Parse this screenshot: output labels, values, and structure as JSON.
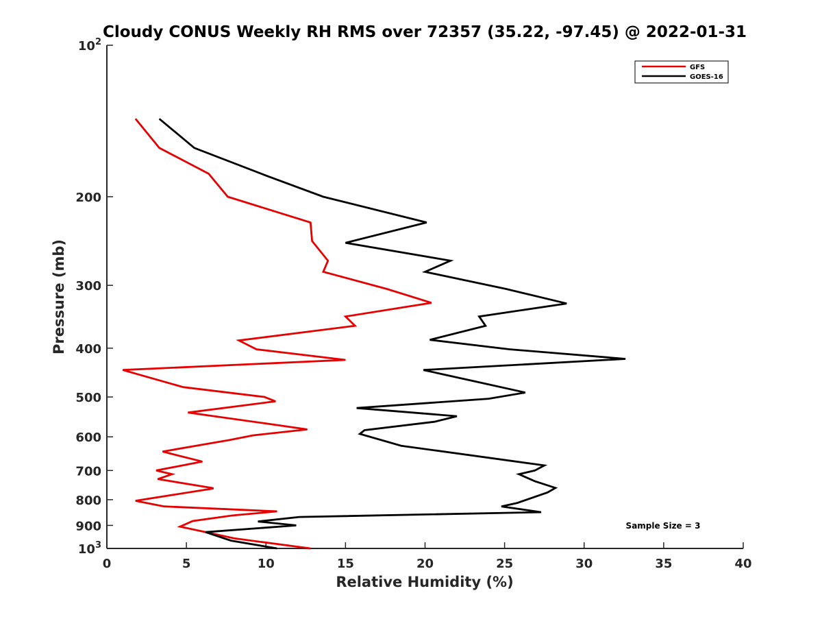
{
  "chart_data": {
    "type": "line",
    "title": "Cloudy CONUS Weekly RH RMS over 72357 (35.22, -97.45) @ 2022-01-31",
    "xlabel": "Relative Humidity (%)",
    "ylabel": "Pressure (mb)",
    "xlim": [
      0,
      40
    ],
    "ylim": [
      100,
      1000
    ],
    "y_scale": "log",
    "y_reversed": true,
    "grid": false,
    "legend_position": "top-right",
    "x_ticks": [
      "0",
      "5",
      "10",
      "15",
      "20",
      "25",
      "30",
      "35",
      "40"
    ],
    "y_ticks": [
      {
        "value": 100,
        "base": "10",
        "exp": "2"
      },
      {
        "value": 200,
        "label": "200"
      },
      {
        "value": 300,
        "label": "300"
      },
      {
        "value": 400,
        "label": "400"
      },
      {
        "value": 500,
        "label": "500"
      },
      {
        "value": 600,
        "label": "600"
      },
      {
        "value": 700,
        "label": "700"
      },
      {
        "value": 800,
        "label": "800"
      },
      {
        "value": 900,
        "label": "900"
      },
      {
        "value": 1000,
        "base": "10",
        "exp": "3"
      }
    ],
    "series": [
      {
        "name": "GFS",
        "color": "#e60000",
        "points": [
          [
            1.8,
            140
          ],
          [
            3.3,
            160
          ],
          [
            6.4,
            180
          ],
          [
            7.6,
            200
          ],
          [
            12.8,
            225
          ],
          [
            12.9,
            245
          ],
          [
            13.9,
            268
          ],
          [
            13.6,
            282
          ],
          [
            17.6,
            305
          ],
          [
            20.4,
            325
          ],
          [
            15.0,
            346
          ],
          [
            15.6,
            361
          ],
          [
            8.3,
            386
          ],
          [
            9.4,
            402
          ],
          [
            15.0,
            422
          ],
          [
            1.0,
            442
          ],
          [
            4.8,
            478
          ],
          [
            9.9,
            500
          ],
          [
            10.6,
            510
          ],
          [
            5.1,
            537
          ],
          [
            9.9,
            564
          ],
          [
            12.6,
            580
          ],
          [
            9.2,
            596
          ],
          [
            7.7,
            609
          ],
          [
            3.5,
            642
          ],
          [
            6.0,
            672
          ],
          [
            3.1,
            700
          ],
          [
            4.1,
            712
          ],
          [
            3.2,
            728
          ],
          [
            6.6,
            758
          ],
          [
            6.7,
            760
          ],
          [
            1.8,
            804
          ],
          [
            3.6,
            825
          ],
          [
            10.7,
            844
          ],
          [
            7.9,
            860
          ],
          [
            5.4,
            882
          ],
          [
            4.6,
            905
          ],
          [
            6.0,
            925
          ],
          [
            8.0,
            955
          ],
          [
            12.8,
            1000
          ]
        ]
      },
      {
        "name": "GOES-16",
        "color": "#000000",
        "points": [
          [
            3.3,
            140
          ],
          [
            5.5,
            160
          ],
          [
            10.1,
            182
          ],
          [
            13.6,
            200
          ],
          [
            20.1,
            225
          ],
          [
            15.0,
            247
          ],
          [
            21.6,
            268
          ],
          [
            20.0,
            282
          ],
          [
            25.1,
            305
          ],
          [
            28.9,
            326
          ],
          [
            23.4,
            346
          ],
          [
            23.8,
            361
          ],
          [
            20.3,
            385
          ],
          [
            25.3,
            402
          ],
          [
            32.6,
            420
          ],
          [
            19.9,
            442
          ],
          [
            24.0,
            472
          ],
          [
            26.3,
            490
          ],
          [
            24.0,
            504
          ],
          [
            15.7,
            526
          ],
          [
            22.0,
            546
          ],
          [
            20.6,
            560
          ],
          [
            16.2,
            582
          ],
          [
            15.9,
            592
          ],
          [
            18.5,
            625
          ],
          [
            27.5,
            684
          ],
          [
            26.9,
            700
          ],
          [
            25.9,
            712
          ],
          [
            26.9,
            735
          ],
          [
            28.2,
            758
          ],
          [
            27.7,
            774
          ],
          [
            25.8,
            812
          ],
          [
            24.8,
            825
          ],
          [
            27.3,
            847
          ],
          [
            12.1,
            866
          ],
          [
            9.5,
            884
          ],
          [
            11.9,
            900
          ],
          [
            6.2,
            928
          ],
          [
            7.8,
            965
          ],
          [
            10.7,
            1000
          ]
        ]
      }
    ],
    "annotation": "Sample Size = 3"
  }
}
